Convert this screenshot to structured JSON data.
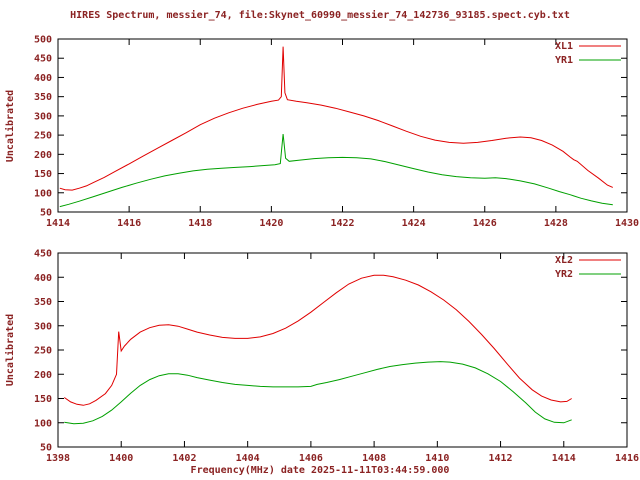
{
  "title": "HIRES Spectrum, messier_74, file:Skynet_60990_messier_74_142736_93185.spect.cyb.txt",
  "xlabel": "Frequency(MHz) date 2025-11-11T03:44:59.000",
  "colors": {
    "text": "#8b2323",
    "axis": "#000000",
    "background": "#ffffff",
    "xl_line": "#e00000",
    "yr_line": "#00a000"
  },
  "chart_data": [
    {
      "type": "line",
      "ylabel": "Uncalibrated",
      "xlim": [
        1414,
        1430
      ],
      "ylim": [
        50,
        500
      ],
      "xtick_step": 2,
      "ytick_step": 50,
      "grid": false,
      "legend_position": "top-right-inside",
      "series": [
        {
          "name": "XL1",
          "color": "#e00000",
          "points": [
            [
              1414.05,
              112
            ],
            [
              1414.2,
              108
            ],
            [
              1414.4,
              107
            ],
            [
              1414.6,
              112
            ],
            [
              1414.8,
              118
            ],
            [
              1415.0,
              127
            ],
            [
              1415.3,
              140
            ],
            [
              1415.6,
              155
            ],
            [
              1416.0,
              175
            ],
            [
              1416.4,
              196
            ],
            [
              1416.8,
              216
            ],
            [
              1417.2,
              236
            ],
            [
              1417.6,
              256
            ],
            [
              1418.0,
              277
            ],
            [
              1418.4,
              294
            ],
            [
              1418.8,
              308
            ],
            [
              1419.2,
              320
            ],
            [
              1419.6,
              330
            ],
            [
              1420.0,
              338
            ],
            [
              1420.2,
              341
            ],
            [
              1420.28,
              350
            ],
            [
              1420.33,
              480
            ],
            [
              1420.38,
              360
            ],
            [
              1420.45,
              342
            ],
            [
              1420.7,
              338
            ],
            [
              1421.0,
              334
            ],
            [
              1421.4,
              328
            ],
            [
              1421.8,
              320
            ],
            [
              1422.2,
              310
            ],
            [
              1422.6,
              300
            ],
            [
              1423.0,
              288
            ],
            [
              1423.4,
              274
            ],
            [
              1423.8,
              260
            ],
            [
              1424.2,
              247
            ],
            [
              1424.6,
              237
            ],
            [
              1425.0,
              231
            ],
            [
              1425.4,
              229
            ],
            [
              1425.8,
              231
            ],
            [
              1426.2,
              236
            ],
            [
              1426.6,
              242
            ],
            [
              1427.0,
              245
            ],
            [
              1427.3,
              243
            ],
            [
              1427.6,
              236
            ],
            [
              1427.9,
              224
            ],
            [
              1428.2,
              208
            ],
            [
              1428.4,
              193
            ],
            [
              1428.5,
              186
            ],
            [
              1428.6,
              182
            ],
            [
              1428.9,
              158
            ],
            [
              1429.2,
              138
            ],
            [
              1429.45,
              120
            ],
            [
              1429.6,
              114
            ]
          ]
        },
        {
          "name": "YR1",
          "color": "#00a000",
          "points": [
            [
              1414.05,
              64
            ],
            [
              1414.3,
              70
            ],
            [
              1414.6,
              78
            ],
            [
              1415.0,
              90
            ],
            [
              1415.4,
              102
            ],
            [
              1415.8,
              114
            ],
            [
              1416.2,
              125
            ],
            [
              1416.6,
              135
            ],
            [
              1417.0,
              144
            ],
            [
              1417.4,
              151
            ],
            [
              1417.8,
              157
            ],
            [
              1418.2,
              161
            ],
            [
              1418.6,
              164
            ],
            [
              1419.0,
              166
            ],
            [
              1419.4,
              168
            ],
            [
              1419.8,
              171
            ],
            [
              1420.1,
              173
            ],
            [
              1420.25,
              176
            ],
            [
              1420.33,
              253
            ],
            [
              1420.4,
              190
            ],
            [
              1420.5,
              182
            ],
            [
              1420.8,
              185
            ],
            [
              1421.2,
              189
            ],
            [
              1421.6,
              191
            ],
            [
              1422.0,
              192
            ],
            [
              1422.4,
              191
            ],
            [
              1422.8,
              188
            ],
            [
              1423.2,
              181
            ],
            [
              1423.6,
              172
            ],
            [
              1424.0,
              163
            ],
            [
              1424.4,
              154
            ],
            [
              1424.8,
              147
            ],
            [
              1425.2,
              142
            ],
            [
              1425.6,
              139
            ],
            [
              1426.0,
              138
            ],
            [
              1426.3,
              139
            ],
            [
              1426.6,
              137
            ],
            [
              1427.0,
              131
            ],
            [
              1427.4,
              123
            ],
            [
              1427.8,
              112
            ],
            [
              1428.1,
              103
            ],
            [
              1428.4,
              95
            ],
            [
              1428.5,
              92
            ],
            [
              1428.7,
              86
            ],
            [
              1429.0,
              79
            ],
            [
              1429.3,
              73
            ],
            [
              1429.6,
              69
            ]
          ]
        }
      ]
    },
    {
      "type": "line",
      "ylabel": "Uncalibrated",
      "xlim": [
        1398,
        1416
      ],
      "ylim": [
        50,
        450
      ],
      "xtick_step": 2,
      "ytick_step": 50,
      "grid": false,
      "legend_position": "top-right-inside",
      "series": [
        {
          "name": "XL2",
          "color": "#e00000",
          "points": [
            [
              1398.2,
              152
            ],
            [
              1398.4,
              143
            ],
            [
              1398.6,
              138
            ],
            [
              1398.8,
              136
            ],
            [
              1399.0,
              139
            ],
            [
              1399.2,
              146
            ],
            [
              1399.5,
              160
            ],
            [
              1399.7,
              177
            ],
            [
              1399.85,
              200
            ],
            [
              1399.92,
              288
            ],
            [
              1400.0,
              248
            ],
            [
              1400.1,
              258
            ],
            [
              1400.3,
              272
            ],
            [
              1400.6,
              287
            ],
            [
              1400.9,
              296
            ],
            [
              1401.2,
              301
            ],
            [
              1401.5,
              302
            ],
            [
              1401.8,
              299
            ],
            [
              1402.1,
              293
            ],
            [
              1402.4,
              287
            ],
            [
              1402.8,
              281
            ],
            [
              1403.2,
              276
            ],
            [
              1403.6,
              274
            ],
            [
              1404.0,
              274
            ],
            [
              1404.4,
              277
            ],
            [
              1404.8,
              284
            ],
            [
              1405.2,
              295
            ],
            [
              1405.6,
              310
            ],
            [
              1406.0,
              328
            ],
            [
              1406.4,
              348
            ],
            [
              1406.8,
              368
            ],
            [
              1407.2,
              386
            ],
            [
              1407.6,
              398
            ],
            [
              1408.0,
              404
            ],
            [
              1408.3,
              404
            ],
            [
              1408.6,
              401
            ],
            [
              1409.0,
              394
            ],
            [
              1409.4,
              384
            ],
            [
              1409.8,
              370
            ],
            [
              1410.2,
              353
            ],
            [
              1410.6,
              333
            ],
            [
              1411.0,
              309
            ],
            [
              1411.4,
              282
            ],
            [
              1411.8,
              253
            ],
            [
              1412.2,
              222
            ],
            [
              1412.6,
              192
            ],
            [
              1413.0,
              168
            ],
            [
              1413.3,
              155
            ],
            [
              1413.6,
              147
            ],
            [
              1413.9,
              143
            ],
            [
              1414.1,
              144
            ],
            [
              1414.25,
              150
            ]
          ]
        },
        {
          "name": "YR2",
          "color": "#00a000",
          "points": [
            [
              1398.2,
              101
            ],
            [
              1398.5,
              98
            ],
            [
              1398.8,
              99
            ],
            [
              1399.1,
              104
            ],
            [
              1399.4,
              113
            ],
            [
              1399.7,
              126
            ],
            [
              1400.0,
              143
            ],
            [
              1400.3,
              161
            ],
            [
              1400.6,
              177
            ],
            [
              1400.9,
              189
            ],
            [
              1401.2,
              197
            ],
            [
              1401.5,
              201
            ],
            [
              1401.8,
              201
            ],
            [
              1402.1,
              198
            ],
            [
              1402.4,
              193
            ],
            [
              1402.8,
              188
            ],
            [
              1403.2,
              183
            ],
            [
              1403.6,
              179
            ],
            [
              1404.0,
              177
            ],
            [
              1404.4,
              175
            ],
            [
              1404.8,
              174
            ],
            [
              1405.2,
              174
            ],
            [
              1405.6,
              174
            ],
            [
              1406.0,
              175
            ],
            [
              1406.2,
              179
            ],
            [
              1406.5,
              183
            ],
            [
              1406.9,
              189
            ],
            [
              1407.3,
              196
            ],
            [
              1407.7,
              203
            ],
            [
              1408.1,
              210
            ],
            [
              1408.5,
              216
            ],
            [
              1408.9,
              220
            ],
            [
              1409.3,
              223
            ],
            [
              1409.7,
              225
            ],
            [
              1410.1,
              226
            ],
            [
              1410.4,
              225
            ],
            [
              1410.8,
              221
            ],
            [
              1411.2,
              213
            ],
            [
              1411.6,
              201
            ],
            [
              1412.0,
              185
            ],
            [
              1412.4,
              164
            ],
            [
              1412.8,
              141
            ],
            [
              1413.1,
              122
            ],
            [
              1413.4,
              108
            ],
            [
              1413.7,
              101
            ],
            [
              1414.0,
              100
            ],
            [
              1414.25,
              106
            ]
          ]
        }
      ]
    }
  ]
}
